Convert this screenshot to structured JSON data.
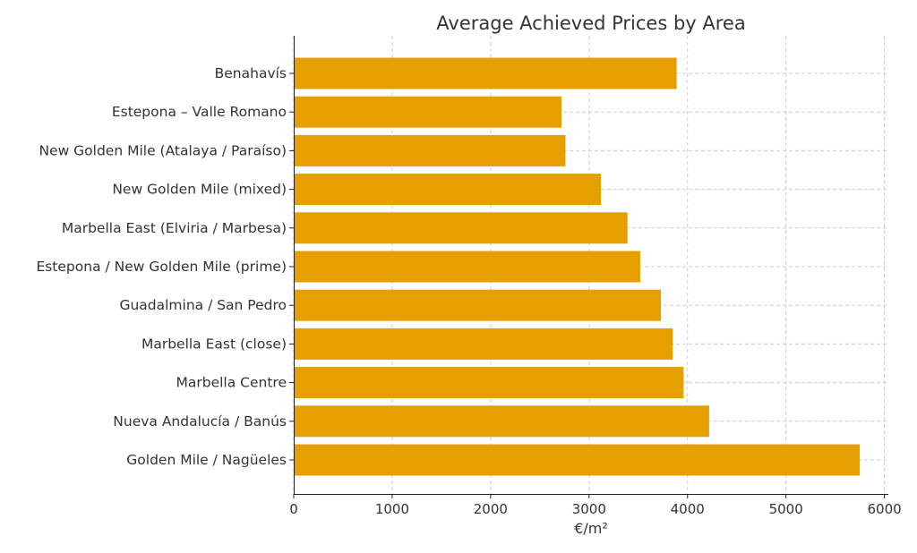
{
  "chart_data": {
    "type": "bar",
    "orientation": "horizontal",
    "title": "Average Achieved Prices by Area",
    "xlabel": "€/m²",
    "ylabel": "",
    "categories": [
      "Benahavís",
      "Estepona – Valle Romano",
      "New Golden Mile (Atalaya / Paraíso)",
      "New Golden Mile (mixed)",
      "Marbella East (Elviria / Marbesa)",
      "Estepona / New Golden Mile (prime)",
      "Guadalmina / San Pedro",
      "Marbella East (close)",
      "Marbella Centre",
      "Nueva Andalucía / Banús",
      "Golden Mile / Nagüeles"
    ],
    "values": [
      3890,
      2720,
      2760,
      3120,
      3390,
      3520,
      3730,
      3850,
      3960,
      4220,
      5750
    ],
    "xticks": [
      "0",
      "1000",
      "2000",
      "3000",
      "4000",
      "5000",
      "6000"
    ],
    "xlim": [
      0,
      6040
    ],
    "grid": true,
    "bar_color": "#E5A000"
  }
}
